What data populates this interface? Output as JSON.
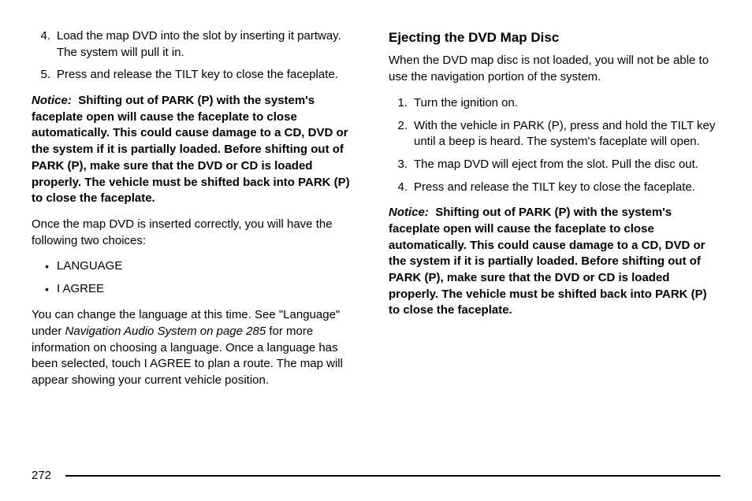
{
  "page_number": "272",
  "left": {
    "steps": [
      {
        "n": "4.",
        "t": "Load the map DVD into the slot by inserting it partway. The system will pull it in."
      },
      {
        "n": "5.",
        "t": "Press and release the TILT key to close the faceplate."
      }
    ],
    "notice_label": "Notice:",
    "notice_text": "Shifting out of PARK (P) with the system's faceplate open will cause the faceplate to close automatically. This could cause damage to a CD, DVD or the system if it is partially loaded. Before shifting out of PARK (P), make sure that the DVD or CD is loaded properly. The vehicle must be shifted back into PARK (P) to close the faceplate.",
    "after_notice": "Once the map DVD is inserted correctly, you will have the following two choices:",
    "bullets": [
      "LANGUAGE",
      "I AGREE"
    ],
    "para2_a": "You can change the language at this time. See \"Language\" under ",
    "para2_ref": "Navigation Audio System on page 285",
    "para2_b": " for more information on choosing a language. Once a language has been selected, touch I AGREE to plan a route. The map will appear showing your current vehicle position."
  },
  "right": {
    "heading": "Ejecting the DVD Map Disc",
    "intro": "When the DVD map disc is not loaded, you will not be able to use the navigation portion of the system.",
    "steps": [
      {
        "n": "1.",
        "t": "Turn the ignition on."
      },
      {
        "n": "2.",
        "t": "With the vehicle in PARK (P), press and hold the TILT key until a beep is heard. The system's faceplate will open."
      },
      {
        "n": "3.",
        "t": "The map DVD will eject from the slot. Pull the disc out."
      },
      {
        "n": "4.",
        "t": "Press and release the TILT key to close the faceplate."
      }
    ],
    "notice_label": "Notice:",
    "notice_text": "Shifting out of PARK (P) with the system's faceplate open will cause the faceplate to close automatically. This could cause damage to a CD, DVD or the system if it is partially loaded. Before shifting out of PARK (P), make sure that the DVD or CD is loaded properly. The vehicle must be shifted back into PARK (P) to close the faceplate."
  }
}
